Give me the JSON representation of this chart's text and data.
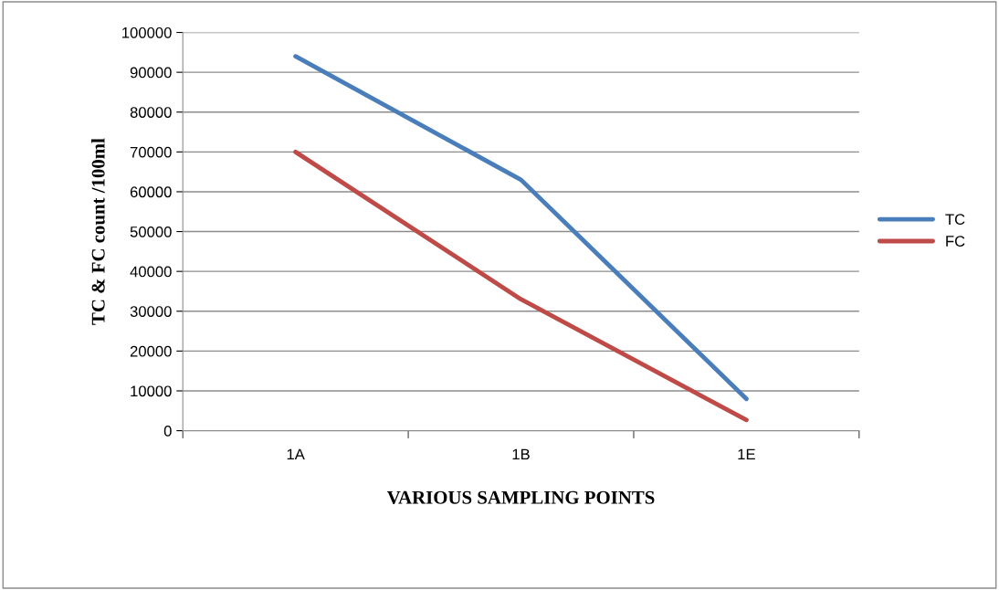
{
  "chart_data": {
    "type": "line",
    "xlabel": "VARIOUS SAMPLING POINTS",
    "ylabel": "TC & FC count /100ml",
    "categories": [
      "1A",
      "1B",
      "1E"
    ],
    "series": [
      {
        "name": "TC",
        "color": "#4a7ebb",
        "values": [
          94000,
          63000,
          8000
        ]
      },
      {
        "name": "FC",
        "color": "#be4b48",
        "values": [
          70000,
          33000,
          2700
        ]
      }
    ],
    "ylim": [
      0,
      100000
    ],
    "yticks": [
      0,
      10000,
      20000,
      30000,
      40000,
      50000,
      60000,
      70000,
      80000,
      90000,
      100000
    ],
    "grid": "y",
    "legend": "right",
    "marker": "none"
  }
}
